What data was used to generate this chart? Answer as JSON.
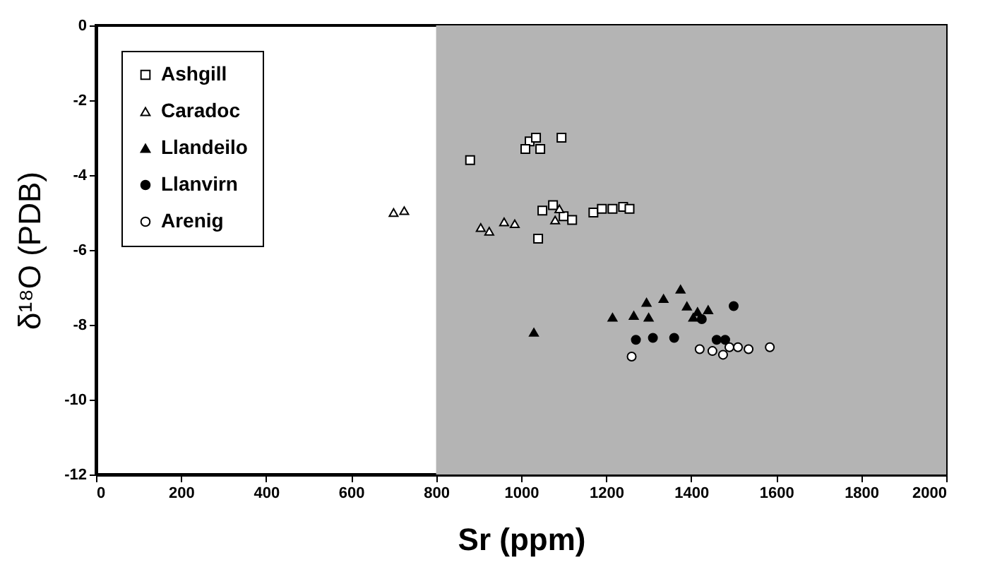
{
  "chart_data": {
    "type": "scatter",
    "xlabel": "Sr (ppm)",
    "ylabel": "δ¹⁸O (PDB)",
    "xlim": [
      0,
      2000
    ],
    "ylim": [
      -12,
      0
    ],
    "xticks": [
      0,
      200,
      400,
      600,
      800,
      1000,
      1200,
      1400,
      1600,
      1800,
      2000
    ],
    "yticks": [
      -12,
      -10,
      -8,
      -6,
      -4,
      -2,
      0
    ],
    "legend": "top left",
    "bands": [
      {
        "axis": "x",
        "from": 800,
        "to": 2000,
        "color": "#b4b4b4"
      }
    ],
    "series": [
      {
        "name": "Ashgill",
        "color": "#ffffff",
        "marker": "square",
        "x": [
          1020,
          1035,
          1010,
          1045,
          1095,
          880,
          1040,
          1050,
          1075,
          1100,
          1120,
          1170,
          1190,
          1215,
          1240,
          1255
        ],
        "values": [
          -3.1,
          -3.0,
          -3.3,
          -3.3,
          -3.0,
          -3.6,
          -5.7,
          -4.95,
          -4.8,
          -5.1,
          -5.2,
          -5.0,
          -4.9,
          -4.9,
          -4.85,
          -4.9
        ]
      },
      {
        "name": "Caradoc",
        "color": "#ffffff",
        "marker": "triangle",
        "x": [
          700,
          725,
          905,
          925,
          960,
          985,
          1080,
          1090
        ],
        "values": [
          -5.0,
          -4.95,
          -5.4,
          -5.5,
          -5.25,
          -5.3,
          -5.2,
          -4.9
        ]
      },
      {
        "name": "Llandeilo",
        "color": "#000000",
        "marker": "triangle",
        "x": [
          1030,
          1215,
          1265,
          1295,
          1300,
          1335,
          1375,
          1390,
          1405,
          1415,
          1440
        ],
        "values": [
          -8.2,
          -7.8,
          -7.75,
          -7.4,
          -7.8,
          -7.3,
          -7.05,
          -7.5,
          -7.8,
          -7.65,
          -7.6
        ]
      },
      {
        "name": "Llanvirn",
        "color": "#000000",
        "marker": "circle",
        "x": [
          1270,
          1310,
          1360,
          1425,
          1500,
          1460,
          1480
        ],
        "values": [
          -8.4,
          -8.35,
          -8.35,
          -7.85,
          -7.5,
          -8.4,
          -8.4
        ]
      },
      {
        "name": "Arenig",
        "color": "#ffffff",
        "marker": "circle",
        "x": [
          1260,
          1420,
          1450,
          1475,
          1490,
          1510,
          1535,
          1585
        ],
        "values": [
          -8.85,
          -8.65,
          -8.7,
          -8.8,
          -8.6,
          -8.6,
          -8.65,
          -8.6
        ]
      }
    ]
  }
}
